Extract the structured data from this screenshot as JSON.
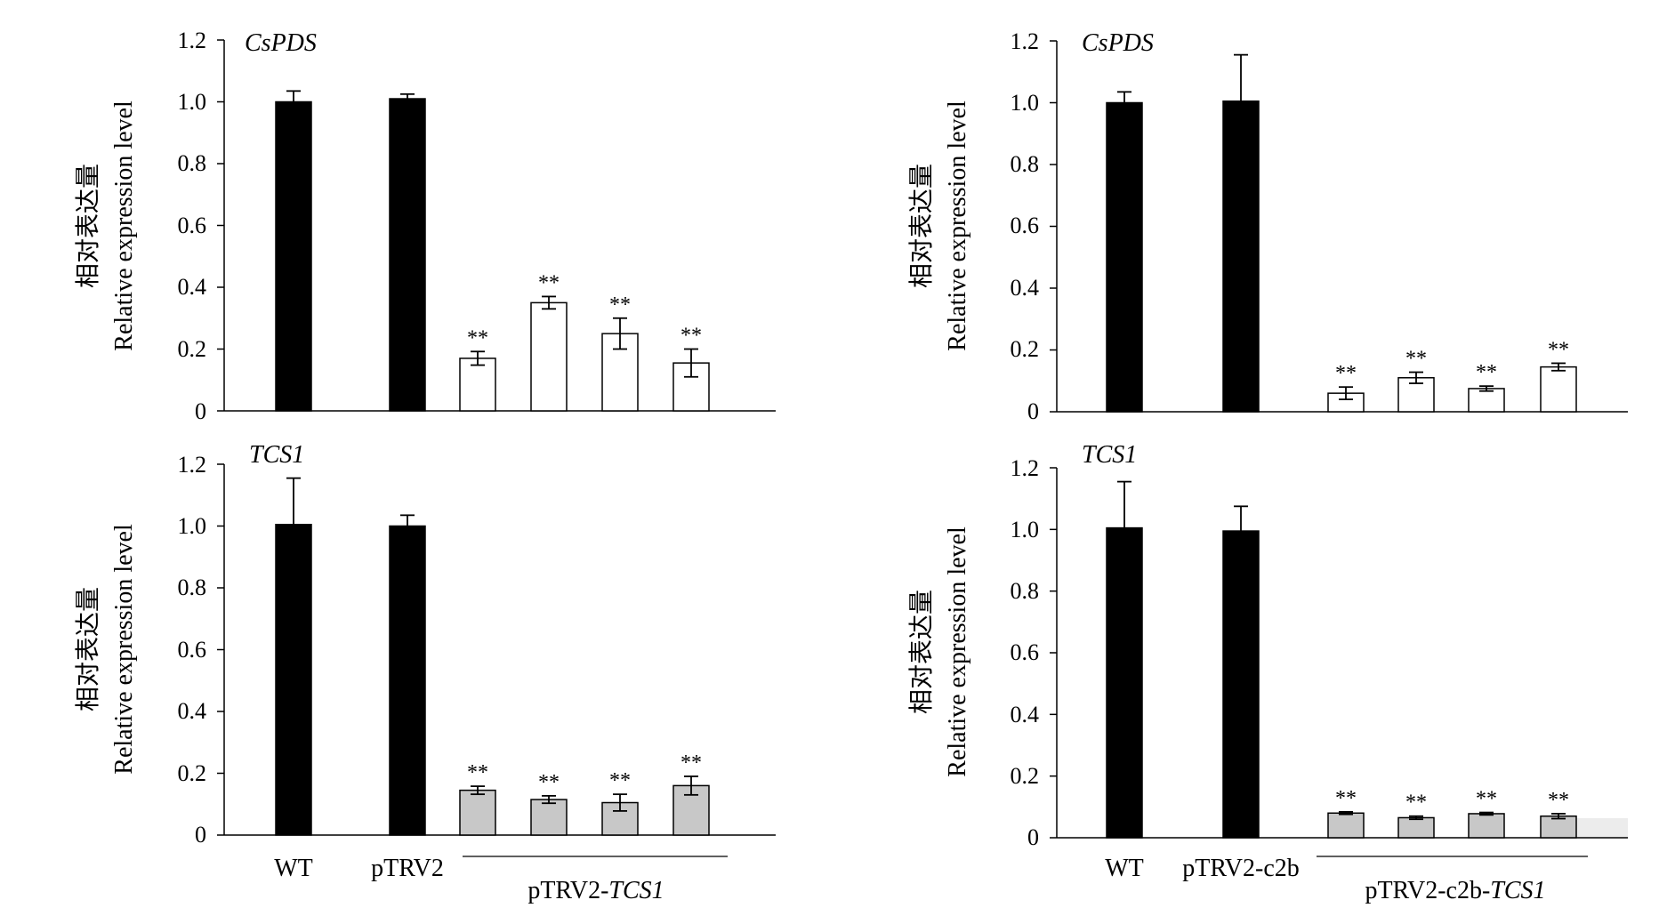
{
  "panels": [
    {
      "gene": "CsPDS",
      "ylabel_cn": "相对表达量",
      "ylabel_en": "Relative expression level",
      "yticks": [
        "0",
        "0.2",
        "0.4",
        "0.6",
        "0.8",
        "1.0",
        "1.2"
      ]
    },
    {
      "gene": "CsPDS",
      "ylabel_cn": "相对表达量",
      "ylabel_en": "Relative expression level",
      "yticks": [
        "0",
        "0.2",
        "0.4",
        "0.6",
        "0.8",
        "1.0",
        "1.2"
      ]
    },
    {
      "gene": "TCS1",
      "ylabel_cn": "相对表达量",
      "ylabel_en": "Relative expression level",
      "yticks": [
        "0",
        "0.2",
        "0.4",
        "0.6",
        "0.8",
        "1.0",
        "1.2"
      ]
    },
    {
      "gene": "TCS1",
      "ylabel_cn": "相对表达量",
      "ylabel_en": "Relative expression level",
      "yticks": [
        "0",
        "0.2",
        "0.4",
        "0.6",
        "0.8",
        "1.0",
        "1.2"
      ]
    }
  ],
  "categories_left": {
    "wt": "WT",
    "vector": "pTRV2",
    "group_prefix": "pTRV2-",
    "group_gene": "TCS1"
  },
  "categories_right": {
    "wt": "WT",
    "vector": "pTRV2-c2b",
    "group_prefix": "pTRV2-c2b-",
    "group_gene": "TCS1"
  },
  "significance_label": "**",
  "colors": {
    "control_bar": "#000000",
    "cspds_silenced_bar": "#ffffff",
    "tcs1_silenced_bar": "#c8c8c8"
  },
  "chart_data": [
    {
      "type": "bar",
      "title": "CsPDS",
      "ylabel": "相对表达量 Relative expression level",
      "ylim": [
        0,
        1.2
      ],
      "categories": [
        "WT",
        "pTRV2",
        "pTRV2-TCS1 #1",
        "pTRV2-TCS1 #2",
        "pTRV2-TCS1 #3",
        "pTRV2-TCS1 #4"
      ],
      "values": [
        1.0,
        1.01,
        0.17,
        0.35,
        0.25,
        0.155
      ],
      "errors": [
        0.035,
        0.015,
        0.022,
        0.02,
        0.05,
        0.045
      ],
      "significance": [
        "",
        "",
        "**",
        "**",
        "**",
        "**"
      ],
      "fill": [
        "control",
        "control",
        "silenced",
        "silenced",
        "silenced",
        "silenced"
      ]
    },
    {
      "type": "bar",
      "title": "CsPDS",
      "ylabel": "相对表达量 Relative expression level",
      "ylim": [
        0,
        1.2
      ],
      "categories": [
        "WT",
        "pTRV2-c2b",
        "pTRV2-c2b-TCS1 #1",
        "pTRV2-c2b-TCS1 #2",
        "pTRV2-c2b-TCS1 #3",
        "pTRV2-c2b-TCS1 #4"
      ],
      "values": [
        1.0,
        1.005,
        0.06,
        0.11,
        0.075,
        0.145
      ],
      "errors": [
        0.035,
        0.15,
        0.02,
        0.018,
        0.008,
        0.012
      ],
      "significance": [
        "",
        "",
        "**",
        "**",
        "**",
        "**"
      ],
      "fill": [
        "control",
        "control",
        "silenced",
        "silenced",
        "silenced",
        "silenced"
      ]
    },
    {
      "type": "bar",
      "title": "TCS1",
      "ylabel": "相对表达量 Relative expression level",
      "ylim": [
        0,
        1.2
      ],
      "categories": [
        "WT",
        "pTRV2",
        "pTRV2-TCS1 #1",
        "pTRV2-TCS1 #2",
        "pTRV2-TCS1 #3",
        "pTRV2-TCS1 #4"
      ],
      "values": [
        1.005,
        1.0,
        0.145,
        0.115,
        0.105,
        0.16
      ],
      "errors": [
        0.15,
        0.035,
        0.013,
        0.012,
        0.027,
        0.03
      ],
      "significance": [
        "",
        "",
        "**",
        "**",
        "**",
        "**"
      ],
      "fill": [
        "control",
        "control",
        "silenced",
        "silenced",
        "silenced",
        "silenced"
      ]
    },
    {
      "type": "bar",
      "title": "TCS1",
      "ylabel": "相对表达量 Relative expression level",
      "ylim": [
        0,
        1.2
      ],
      "categories": [
        "WT",
        "pTRV2-c2b",
        "pTRV2-c2b-TCS1 #1",
        "pTRV2-c2b-TCS1 #2",
        "pTRV2-c2b-TCS1 #3",
        "pTRV2-c2b-TCS1 #4"
      ],
      "values": [
        1.005,
        0.995,
        0.08,
        0.065,
        0.078,
        0.07
      ],
      "errors": [
        0.15,
        0.08,
        0.004,
        0.005,
        0.004,
        0.008
      ],
      "significance": [
        "",
        "",
        "**",
        "**",
        "**",
        "**"
      ],
      "fill": [
        "control",
        "control",
        "silenced",
        "silenced",
        "silenced",
        "silenced"
      ]
    }
  ]
}
